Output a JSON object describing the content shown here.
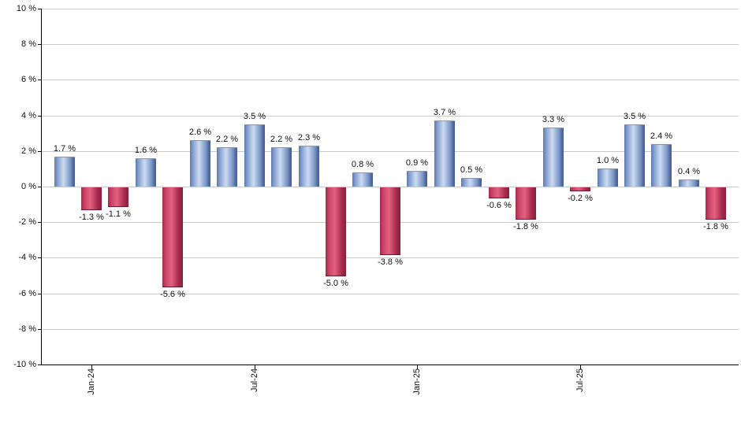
{
  "chart_data": {
    "type": "bar",
    "title": "",
    "xlabel": "",
    "ylabel": "",
    "categories": [
      "Dec-23",
      "Jan-24",
      "Feb-24",
      "Mar-24",
      "Apr-24",
      "May-24",
      "Jun-24",
      "Jul-24",
      "Aug-24",
      "Sep-24",
      "Oct-24",
      "Nov-24",
      "Dec-24",
      "Jan-25",
      "Feb-25",
      "Mar-25",
      "Apr-25",
      "May-25",
      "Jun-25",
      "Jul-25",
      "Aug-25",
      "Sep-25",
      "Oct-25",
      "Nov-25",
      "Dec-25"
    ],
    "values": [
      1.7,
      -1.3,
      -1.1,
      1.6,
      -5.6,
      2.6,
      2.2,
      3.5,
      2.2,
      2.3,
      -5.0,
      0.8,
      -3.8,
      0.9,
      3.7,
      0.5,
      -0.6,
      -1.8,
      3.3,
      -0.2,
      1.0,
      3.5,
      2.4,
      0.4,
      -1.8
    ],
    "bar_labels": [
      "1.7 %",
      "-1.3 %",
      "-1.1 %",
      "1.6 %",
      "-5.6 %",
      "2.6 %",
      "2.2 %",
      "3.5 %",
      "2.2 %",
      "2.3 %",
      "-5.0 %",
      "0.8 %",
      "-3.8 %",
      "0.9 %",
      "3.7 %",
      "0.5 %",
      "-0.6 %",
      "-1.8 %",
      "3.3 %",
      "-0.2 %",
      "1.0 %",
      "3.5 %",
      "2.4 %",
      "0.4 %",
      "-1.8 %"
    ],
    "ylim": [
      -10,
      10
    ],
    "ytick_step": 2,
    "ytick_labels": [
      "10 %",
      "8 %",
      "6 %",
      "4 %",
      "2 %",
      "0 %",
      "-2 %",
      "-4 %",
      "-6 %",
      "-8 %",
      "-10 %"
    ],
    "ytick_values": [
      10,
      8,
      6,
      4,
      2,
      0,
      -2,
      -4,
      -6,
      -8,
      -10
    ],
    "xtick_labels": [
      "Jan-24",
      "Jul-24",
      "Jan-25",
      "Jul-25"
    ],
    "xtick_indices": [
      1,
      7,
      13,
      19
    ],
    "grid": true,
    "legend_position": "none",
    "colors": {
      "positive_edge_left": "#5b79ae",
      "positive_light": "#b6c9e7",
      "positive_center": "#cddbf1",
      "positive_mid": "#7a96c5",
      "positive_edge_right": "#475f94",
      "positive_cap": "#8a95a8",
      "negative_edge_left": "#a8284c",
      "negative_light": "#dd5878",
      "negative_center": "#e2607e",
      "negative_mid": "#c74465",
      "negative_edge_right": "#8c1f3c",
      "negative_cap": "#70172e",
      "gridline": "#c9c9c9",
      "axis": "#000000",
      "label_text": "#111111",
      "background": "#ffffff"
    }
  }
}
